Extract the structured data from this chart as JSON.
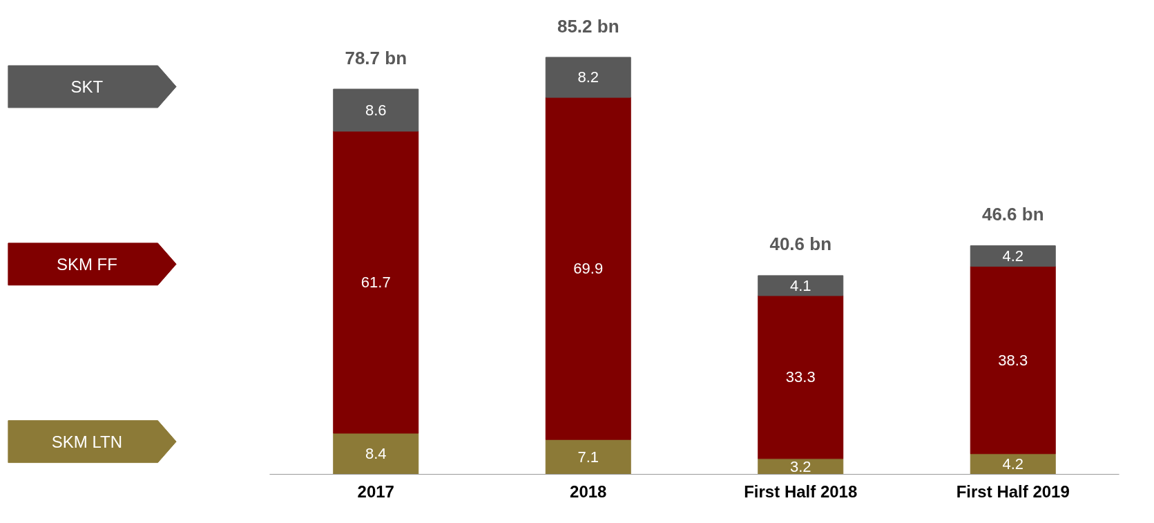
{
  "chart_data": {
    "type": "bar",
    "stacked": true,
    "categories": [
      "2017",
      "2018",
      "First Half 2018",
      "First Half 2019"
    ],
    "series": [
      {
        "name": "SKM LTN",
        "color": "#8c7a37",
        "values": [
          8.4,
          7.1,
          3.2,
          4.2
        ]
      },
      {
        "name": "SKM FF",
        "color": "#800000",
        "values": [
          61.7,
          69.9,
          33.3,
          38.3
        ]
      },
      {
        "name": "SKT",
        "color": "#595959",
        "values": [
          8.6,
          8.2,
          4.1,
          4.2
        ]
      }
    ],
    "data_labels": true,
    "totals": [
      "78.7 bn",
      "85.2 bn",
      "40.6 bn",
      "46.6 bn"
    ],
    "legend": "left",
    "grid": false
  }
}
